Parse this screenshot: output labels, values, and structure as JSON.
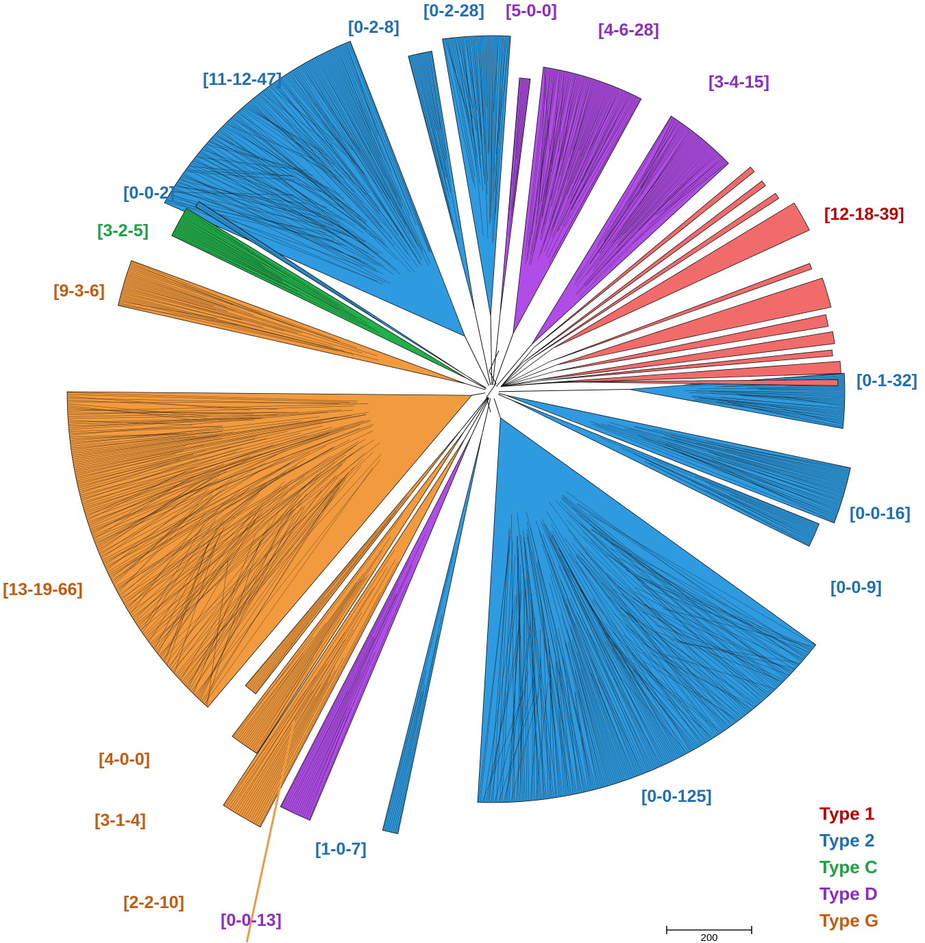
{
  "colors": {
    "type1": "#f26b6b",
    "type2": "#2e9be0",
    "typeC": "#22b04b",
    "typeD": "#b04de6",
    "typeG": "#f19a3e",
    "type1_text": "#c00000",
    "type2_text": "#1f6fb6",
    "typeC_text": "#19a342",
    "typeD_text": "#8e2bc4",
    "typeG_text": "#c55a11",
    "line": "#111111"
  },
  "clades": [
    {
      "label": "[11-12-47]",
      "type": "type2"
    },
    {
      "label": "[0-2-8]",
      "type": "type2"
    },
    {
      "label": "[0-2-28]",
      "type": "type2"
    },
    {
      "label": "[5-0-0]",
      "type": "typeD"
    },
    {
      "label": "[4-6-28]",
      "type": "typeD"
    },
    {
      "label": "[3-4-15]",
      "type": "typeD"
    },
    {
      "label": "[12-18-39]",
      "type": "type1"
    },
    {
      "label": "[0-1-32]",
      "type": "type2"
    },
    {
      "label": "[0-0-16]",
      "type": "type2"
    },
    {
      "label": "[0-0-9]",
      "type": "type2"
    },
    {
      "label": "[0-0-125]",
      "type": "type2"
    },
    {
      "label": "[1-0-7]",
      "type": "type2"
    },
    {
      "label": "[0-0-13]",
      "type": "typeD"
    },
    {
      "label": "[2-2-10]",
      "type": "typeG"
    },
    {
      "label": "[3-1-4]",
      "type": "typeG"
    },
    {
      "label": "[4-0-0]",
      "type": "typeG"
    },
    {
      "label": "[13-19-66]",
      "type": "typeG"
    },
    {
      "label": "[9-3-6]",
      "type": "typeG"
    },
    {
      "label": "[3-2-5]",
      "type": "typeC"
    },
    {
      "label": "[0-0-2]",
      "type": "type2"
    }
  ],
  "legend": [
    {
      "label": "Type 1",
      "type": "type1"
    },
    {
      "label": "Type 2",
      "type": "type2"
    },
    {
      "label": "Type C",
      "type": "typeC"
    },
    {
      "label": "Type D",
      "type": "typeD"
    },
    {
      "label": "Type G",
      "type": "typeG"
    }
  ],
  "scale_bar": {
    "label": "200"
  }
}
